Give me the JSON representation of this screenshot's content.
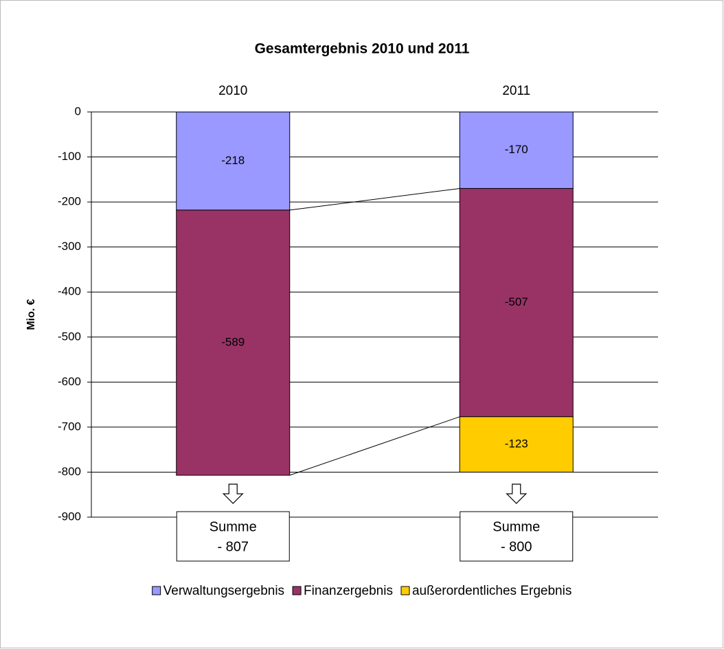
{
  "chart_data": {
    "type": "stacked_bar",
    "title": "Gesamtergebnis 2010 und 2011",
    "y_label": "Mio. €",
    "categories": [
      "2010",
      "2011"
    ],
    "series": [
      {
        "name": "Verwaltungsergebnis",
        "color": "#9999ff",
        "values": [
          -218,
          -170
        ]
      },
      {
        "name": "Finanzergebnis",
        "color": "#993366",
        "values": [
          -589,
          -507
        ]
      },
      {
        "name": "außerordentliches Ergebnis",
        "color": "#ffcc00",
        "values": [
          null,
          -123
        ]
      }
    ],
    "ylim": [
      -900,
      0
    ],
    "yticks": [
      0,
      -100,
      -200,
      -300,
      -400,
      -500,
      -600,
      -700,
      -800,
      -900
    ],
    "grid": true,
    "legend": "bottom",
    "sum_boxes": [
      {
        "label": "Summe",
        "total": "- 807"
      },
      {
        "label": "Summe",
        "total": "- 800"
      }
    ]
  }
}
